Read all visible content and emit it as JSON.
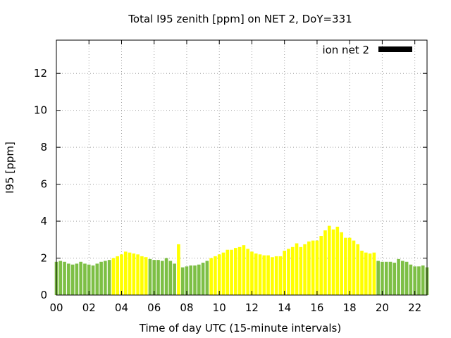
{
  "chart_data": {
    "type": "bar",
    "title": "Total I95 zenith [ppm] on NET 2, DoY=331",
    "xlabel": "Time of day UTC (15-minute intervals)",
    "ylabel": "I95 [ppm]",
    "xlim": [
      0,
      22.75
    ],
    "ylim": [
      0,
      13.8
    ],
    "x_ticks": [
      0,
      2,
      4,
      6,
      8,
      10,
      12,
      14,
      16,
      18,
      20,
      22
    ],
    "x_tick_labels": [
      "00",
      "02",
      "04",
      "06",
      "08",
      "10",
      "12",
      "14",
      "16",
      "18",
      "20",
      "22"
    ],
    "y_ticks": [
      0,
      2,
      4,
      6,
      8,
      10,
      12
    ],
    "y_tick_labels": [
      "0",
      "2",
      "4",
      "6",
      "8",
      "10",
      "12"
    ],
    "grid": true,
    "legend": {
      "label": "ion net 2",
      "position": "top-right",
      "swatch_color": "#000000"
    },
    "bar_width_hours": 0.2,
    "colors": {
      "green": "#7dbf45",
      "yellow": "#ffff00"
    },
    "series": [
      {
        "x": [
          0.0,
          0.25,
          0.5,
          0.75,
          1.0,
          1.25,
          1.5,
          1.75,
          2.0,
          2.25,
          2.5,
          2.75,
          3.0,
          3.25,
          3.5,
          3.75,
          4.0,
          4.25,
          4.5,
          4.75,
          5.0,
          5.25,
          5.5,
          5.75,
          6.0,
          6.25,
          6.5,
          6.75,
          7.0,
          7.25,
          7.5,
          7.75,
          8.0,
          8.25,
          8.5,
          8.75,
          9.0,
          9.25,
          9.5,
          9.75,
          10.0,
          10.25,
          10.5,
          10.75,
          11.0,
          11.25,
          11.5,
          11.75,
          12.0,
          12.25,
          12.5,
          12.75,
          13.0,
          13.25,
          13.5,
          13.75,
          14.0,
          14.25,
          14.5,
          14.75,
          15.0,
          15.25,
          15.5,
          15.75,
          16.0,
          16.25,
          16.5,
          16.75,
          17.0,
          17.25,
          17.5,
          17.75,
          18.0,
          18.25,
          18.5,
          18.75,
          19.0,
          19.25,
          19.5,
          19.75,
          20.0,
          20.25,
          20.5,
          20.75,
          21.0,
          21.25,
          21.5,
          21.75,
          22.0,
          22.25,
          22.5,
          22.75
        ],
        "values": [
          1.8,
          1.85,
          1.8,
          1.7,
          1.65,
          1.7,
          1.8,
          1.7,
          1.65,
          1.6,
          1.7,
          1.8,
          1.85,
          1.9,
          2.0,
          2.1,
          2.2,
          2.35,
          2.3,
          2.25,
          2.2,
          2.1,
          2.05,
          1.95,
          1.9,
          1.9,
          1.85,
          2.0,
          1.85,
          1.7,
          2.75,
          1.5,
          1.55,
          1.6,
          1.6,
          1.65,
          1.75,
          1.85,
          2.0,
          2.1,
          2.2,
          2.3,
          2.45,
          2.45,
          2.55,
          2.6,
          2.7,
          2.5,
          2.35,
          2.25,
          2.2,
          2.15,
          2.15,
          2.05,
          2.1,
          2.1,
          2.4,
          2.5,
          2.6,
          2.8,
          2.6,
          2.75,
          2.9,
          2.95,
          2.95,
          3.2,
          3.5,
          3.75,
          3.55,
          3.7,
          3.4,
          3.1,
          3.1,
          2.95,
          2.75,
          2.4,
          2.3,
          2.25,
          2.3,
          1.85,
          1.8,
          1.8,
          1.8,
          1.75,
          1.95,
          1.85,
          1.8,
          1.65,
          1.55,
          1.55,
          1.6,
          1.5
        ],
        "colors": [
          "green",
          "green",
          "green",
          "green",
          "green",
          "green",
          "green",
          "green",
          "green",
          "green",
          "green",
          "green",
          "green",
          "green",
          "yellow",
          "yellow",
          "yellow",
          "yellow",
          "yellow",
          "yellow",
          "yellow",
          "yellow",
          "yellow",
          "green",
          "green",
          "green",
          "green",
          "green",
          "green",
          "green",
          "yellow",
          "green",
          "green",
          "green",
          "green",
          "green",
          "green",
          "green",
          "yellow",
          "yellow",
          "yellow",
          "yellow",
          "yellow",
          "yellow",
          "yellow",
          "yellow",
          "yellow",
          "yellow",
          "yellow",
          "yellow",
          "yellow",
          "yellow",
          "yellow",
          "yellow",
          "yellow",
          "yellow",
          "yellow",
          "yellow",
          "yellow",
          "yellow",
          "yellow",
          "yellow",
          "yellow",
          "yellow",
          "yellow",
          "yellow",
          "yellow",
          "yellow",
          "yellow",
          "yellow",
          "yellow",
          "yellow",
          "yellow",
          "yellow",
          "yellow",
          "yellow",
          "yellow",
          "yellow",
          "yellow",
          "green",
          "green",
          "green",
          "green",
          "green",
          "green",
          "green",
          "green",
          "green",
          "green",
          "green",
          "green",
          "green"
        ]
      }
    ]
  }
}
